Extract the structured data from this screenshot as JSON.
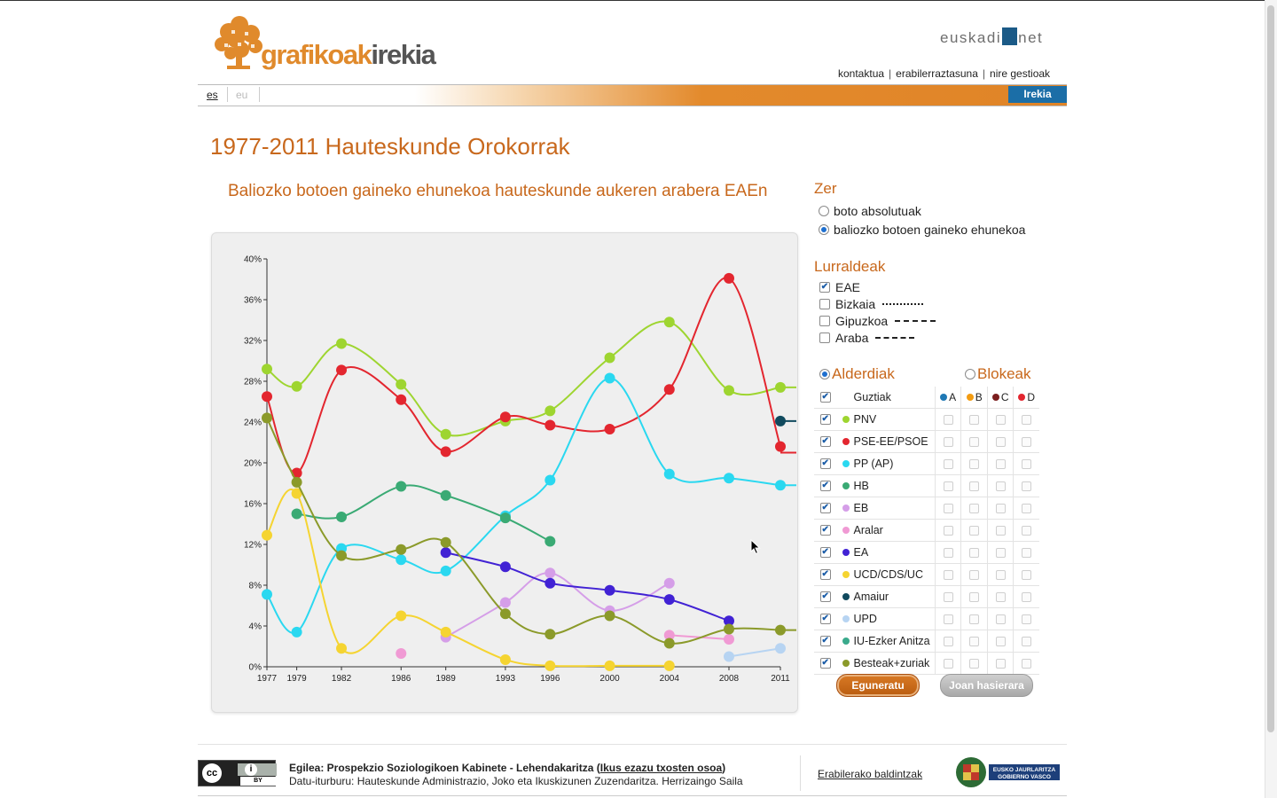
{
  "header": {
    "logo_part1": "grafikoak",
    "logo_part2": "irekia",
    "euskadi_a": "euskadi",
    "euskadi_b": "net",
    "links": [
      "kontaktua",
      "erabilerraztasuna",
      "nire gestioak"
    ],
    "lang_es": "es",
    "lang_eu": "eu",
    "irekia_label": "Irekia"
  },
  "page_title": "1977-2011 Hauteskunde Orokorrak",
  "chart_title": "Baliozko botoen gaineko ehunekoa hauteskunde aukeren arabera EAEn",
  "panel": {
    "zer_title": "Zer",
    "zer_options": [
      {
        "label": "boto absolutuak",
        "selected": false
      },
      {
        "label": "baliozko botoen gaineko ehunekoa",
        "selected": true
      }
    ],
    "lurraldeak_title": "Lurraldeak",
    "lurraldeak": [
      {
        "label": "EAE",
        "checked": true
      },
      {
        "label": "Bizkaia",
        "checked": false
      },
      {
        "label": "Gipuzkoa",
        "checked": false
      },
      {
        "label": "Araba",
        "checked": false
      }
    ],
    "alderdiak_label": "Alderdiak",
    "blokeak_label": "Blokeak",
    "all_label": "Guztiak",
    "blocks": [
      {
        "label": "A",
        "color": "#1f78b4"
      },
      {
        "label": "B",
        "color": "#f39c12"
      },
      {
        "label": "C",
        "color": "#7b1e1e"
      },
      {
        "label": "D",
        "color": "#e3262f"
      }
    ],
    "parties": [
      {
        "name": "PNV",
        "color": "#9ed530"
      },
      {
        "name": "PSE-EE/PSOE",
        "color": "#e3262f"
      },
      {
        "name": "PP (AP)",
        "color": "#2ad8f0"
      },
      {
        "name": "HB",
        "color": "#3aaa74"
      },
      {
        "name": "EB",
        "color": "#d59ee8"
      },
      {
        "name": "Aralar",
        "color": "#f09ad4"
      },
      {
        "name": "EA",
        "color": "#4122d4"
      },
      {
        "name": "UCD/CDS/UC",
        "color": "#f5d431"
      },
      {
        "name": "Amaiur",
        "color": "#104a5e"
      },
      {
        "name": "UPD",
        "color": "#b7d4f2"
      },
      {
        "name": "IU-Ezker Anitza",
        "color": "#3aaa8c"
      },
      {
        "name": "Besteak+zuriak",
        "color": "#8b9a2a"
      }
    ],
    "update_button": "Eguneratu",
    "reset_button": "Joan hasierara"
  },
  "footer": {
    "cc_label": "cc",
    "by_label": "BY",
    "author_prefix": "Egilea: Prospekzio Soziologikoen Kabinete - Lehendakaritza (",
    "author_link": "Ikus ezazu txosten osoa",
    "author_suffix": ")",
    "source": "Datu-iturburu: Hauteskunde Administrazio, Joko eta Ikuskizunen Zuzendaritza. Herrizaingo Saila",
    "terms_link": "Erabilerako baldintzak",
    "gv_line1": "EUSKO JAURLARITZA",
    "gv_line2": "GOBIERNO VASCO"
  },
  "chart_data": {
    "type": "line",
    "x": [
      1977,
      1979,
      1982,
      1986,
      1989,
      1993,
      1996,
      2000,
      2004,
      2008,
      2011
    ],
    "yticks": [
      "0%",
      "4%",
      "8%",
      "12%",
      "16%",
      "20%",
      "24%",
      "28%",
      "32%",
      "36%",
      "40%"
    ],
    "ylim": [
      0,
      40
    ],
    "series": [
      {
        "name": "PNV",
        "color": "#9ed530",
        "values": [
          29.2,
          27.5,
          31.7,
          27.7,
          22.8,
          24.1,
          25.1,
          30.3,
          33.8,
          27.1,
          27.4
        ]
      },
      {
        "name": "PSE-EE/PSOE",
        "color": "#e3262f",
        "values": [
          26.5,
          19.0,
          29.1,
          26.2,
          21.1,
          24.5,
          23.7,
          23.3,
          27.2,
          38.1,
          21.6
        ]
      },
      {
        "name": "PP (AP)",
        "color": "#2ad8f0",
        "values": [
          7.1,
          3.4,
          11.6,
          10.5,
          9.4,
          14.8,
          18.3,
          28.3,
          18.9,
          18.5,
          17.8
        ]
      },
      {
        "name": "HB",
        "color": "#3aaa74",
        "values": [
          null,
          15.0,
          14.7,
          17.7,
          16.8,
          14.6,
          12.3,
          null,
          null,
          null,
          null
        ]
      },
      {
        "name": "EB",
        "color": "#d59ee8",
        "values": [
          null,
          null,
          null,
          null,
          2.9,
          6.3,
          9.2,
          5.5,
          8.2,
          null,
          null
        ]
      },
      {
        "name": "Aralar",
        "color": "#f09ad4",
        "values": [
          null,
          null,
          null,
          1.3,
          null,
          null,
          null,
          null,
          3.1,
          2.7,
          null
        ]
      },
      {
        "name": "EA",
        "color": "#4122d4",
        "values": [
          null,
          null,
          null,
          null,
          11.2,
          9.8,
          8.2,
          7.5,
          6.6,
          4.5,
          null
        ]
      },
      {
        "name": "UCD/CDS/UC",
        "color": "#f5d431",
        "values": [
          12.9,
          17.0,
          1.8,
          5.0,
          3.4,
          0.7,
          0.1,
          0.1,
          0.1,
          null,
          null
        ]
      },
      {
        "name": "Amaiur",
        "color": "#104a5e",
        "values": [
          null,
          null,
          null,
          null,
          null,
          null,
          null,
          null,
          null,
          null,
          24.1
        ]
      },
      {
        "name": "UPD",
        "color": "#b7d4f2",
        "values": [
          null,
          null,
          null,
          null,
          null,
          null,
          null,
          null,
          null,
          1.0,
          1.8
        ]
      },
      {
        "name": "Besteak+zuriak",
        "color": "#8b9a2a",
        "values": [
          24.4,
          18.1,
          10.9,
          11.5,
          12.2,
          5.2,
          3.2,
          5.0,
          2.3,
          3.7,
          3.6
        ]
      }
    ]
  }
}
